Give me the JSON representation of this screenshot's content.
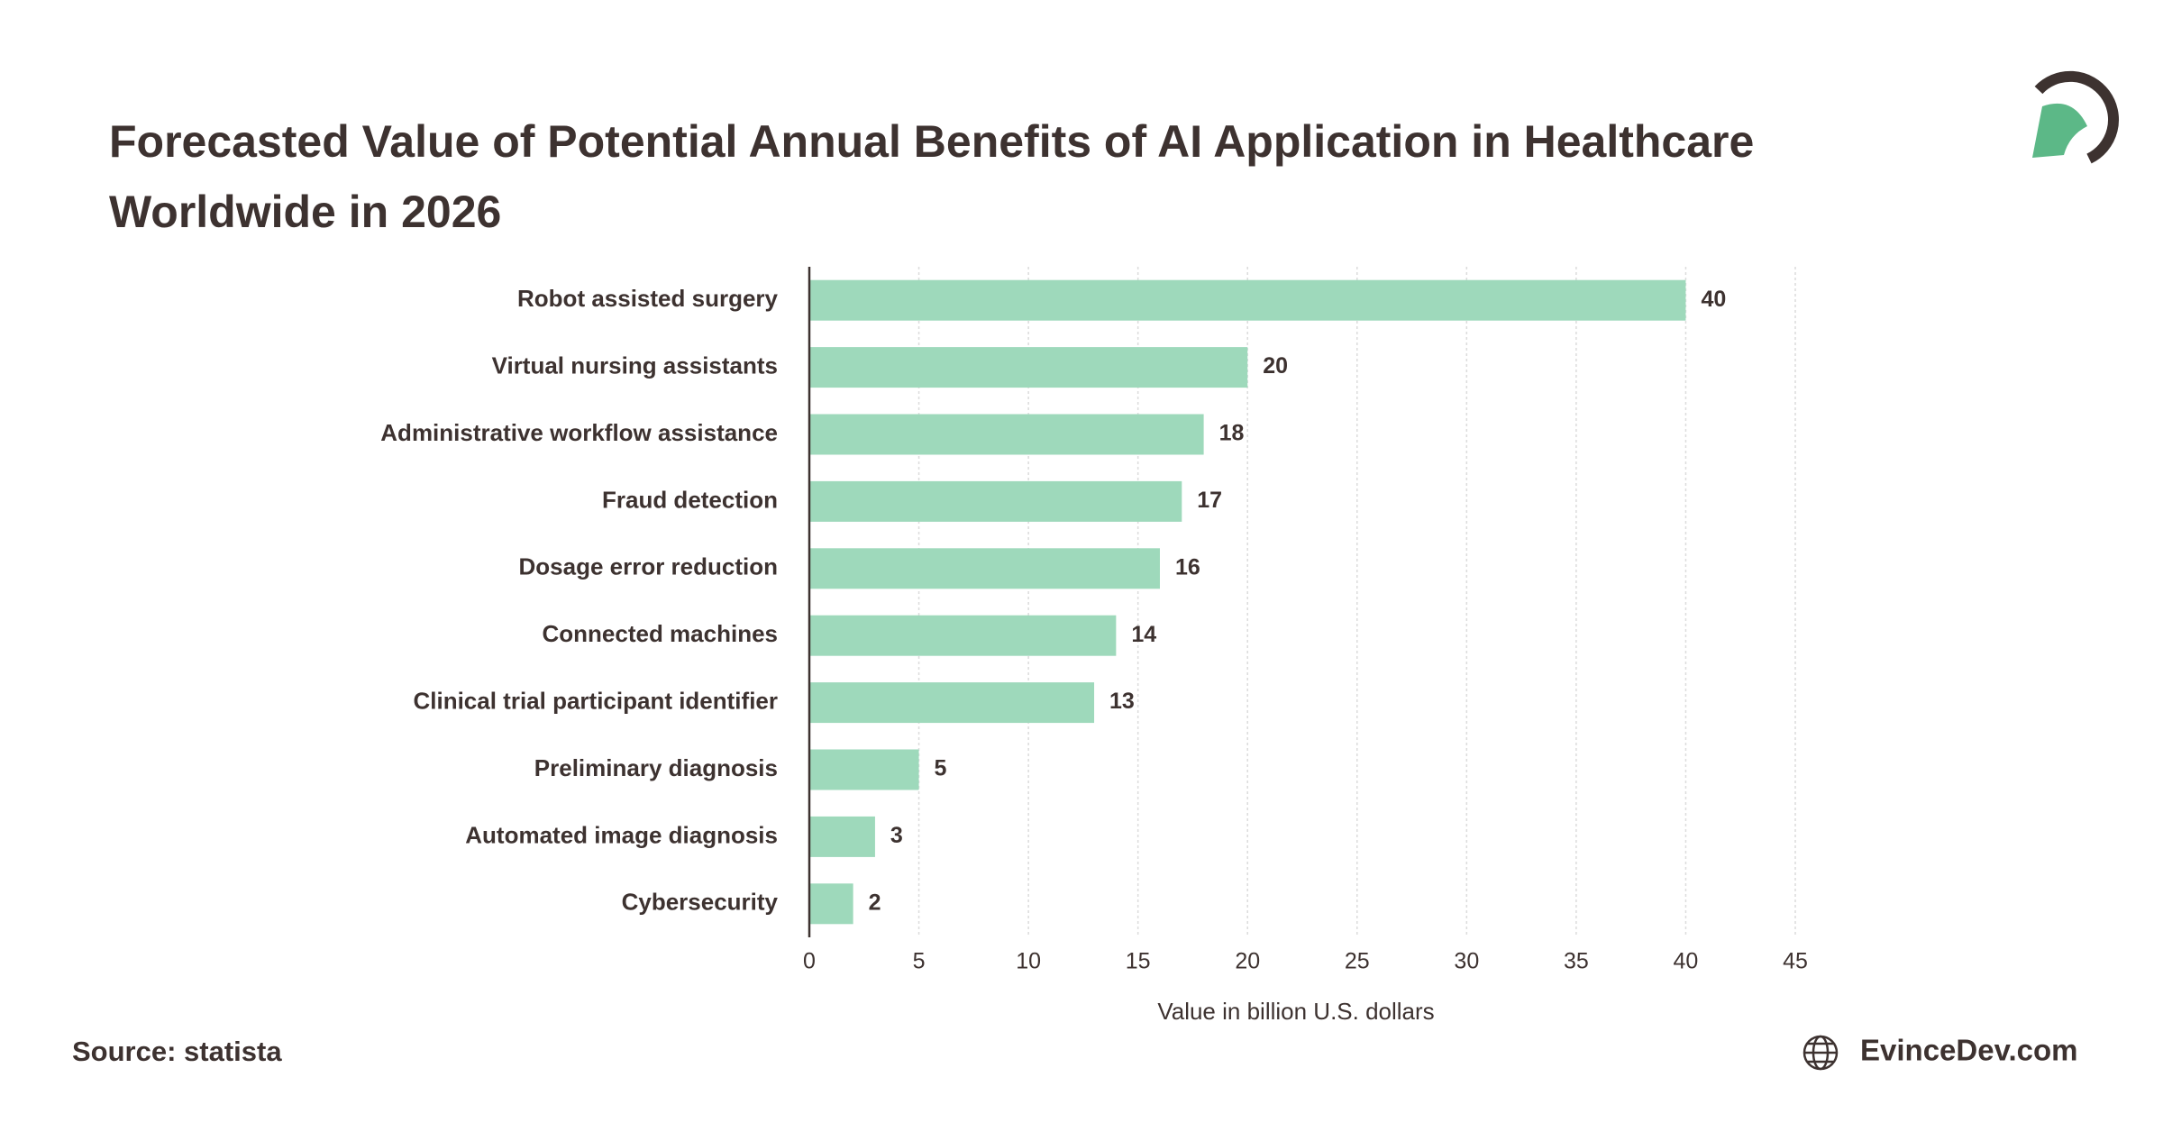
{
  "chart_data": {
    "type": "bar",
    "orientation": "horizontal",
    "title": "Forecasted Value of Potential Annual Benefits of AI Application in Healthcare Worldwide in 2026",
    "categories": [
      "Robot assisted surgery",
      "Virtual nursing assistants",
      "Administrative workflow assistance",
      "Fraud detection",
      "Dosage error reduction",
      "Connected machines",
      "Clinical trial participant identifier",
      "Preliminary diagnosis",
      "Automated image diagnosis",
      "Cybersecurity"
    ],
    "values": [
      40,
      20,
      18,
      17,
      16,
      14,
      13,
      5,
      3,
      2
    ],
    "color": "#9ed9bb",
    "xlabel": "Value in billion U.S. dollars",
    "xlim": [
      0,
      45
    ],
    "xticks": [
      0,
      5,
      10,
      15,
      20,
      25,
      30,
      35,
      40,
      45
    ],
    "grid": true
  },
  "footer": {
    "source": "Source: statista",
    "brand": "EvinceDev.com"
  }
}
